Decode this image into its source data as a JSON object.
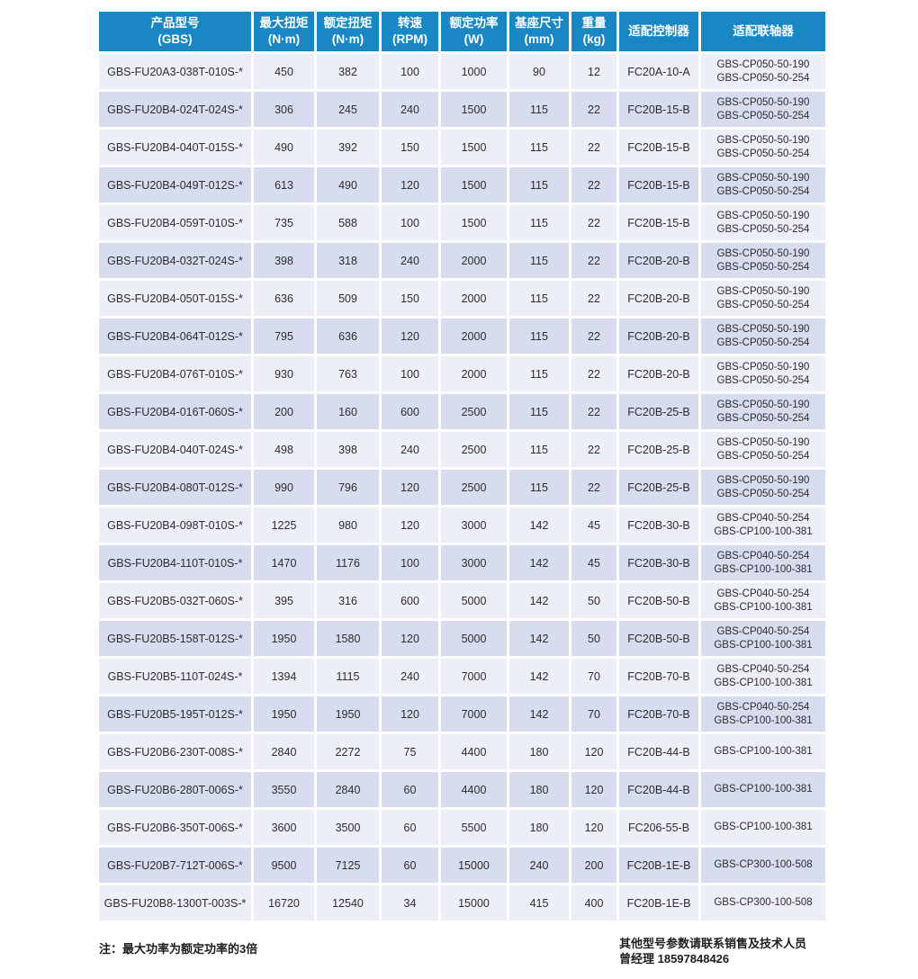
{
  "colors": {
    "header_bg": "#1A87C5",
    "row_light": "#ECEFF8",
    "row_dark": "#D7DCEF",
    "header_text": "#FFFFFF",
    "body_text": "#2D2D2D"
  },
  "table": {
    "column_keys": [
      "model",
      "max-torque",
      "rated-torque",
      "speed",
      "rated-power",
      "base-size",
      "weight",
      "controller",
      "coupling"
    ],
    "headers": [
      {
        "line1": "产品型号",
        "line2": "(GBS)"
      },
      {
        "line1": "最大扭矩",
        "line2": "(N·m)"
      },
      {
        "line1": "额定扭矩",
        "line2": "(N·m)"
      },
      {
        "line1": "转速",
        "line2": "(RPM)"
      },
      {
        "line1": "额定功率",
        "line2": "(W)"
      },
      {
        "line1": "基座尺寸",
        "line2": "(mm)"
      },
      {
        "line1": "重量",
        "line2": "(kg)"
      },
      {
        "line1": "适配控制器",
        "line2": ""
      },
      {
        "line1": "适配联轴器",
        "line2": ""
      }
    ],
    "rows": [
      [
        "GBS-FU20A3-038T-010S-*",
        "450",
        "382",
        "100",
        "1000",
        "90",
        "12",
        "FC20A-10-A",
        [
          "GBS-CP050-50-190",
          "GBS-CP050-50-254"
        ]
      ],
      [
        "GBS-FU20B4-024T-024S-*",
        "306",
        "245",
        "240",
        "1500",
        "115",
        "22",
        "FC20B-15-B",
        [
          "GBS-CP050-50-190",
          "GBS-CP050-50-254"
        ]
      ],
      [
        "GBS-FU20B4-040T-015S-*",
        "490",
        "392",
        "150",
        "1500",
        "115",
        "22",
        "FC20B-15-B",
        [
          "GBS-CP050-50-190",
          "GBS-CP050-50-254"
        ]
      ],
      [
        "GBS-FU20B4-049T-012S-*",
        "613",
        "490",
        "120",
        "1500",
        "115",
        "22",
        "FC20B-15-B",
        [
          "GBS-CP050-50-190",
          "GBS-CP050-50-254"
        ]
      ],
      [
        "GBS-FU20B4-059T-010S-*",
        "735",
        "588",
        "100",
        "1500",
        "115",
        "22",
        "FC20B-15-B",
        [
          "GBS-CP050-50-190",
          "GBS-CP050-50-254"
        ]
      ],
      [
        "GBS-FU20B4-032T-024S-*",
        "398",
        "318",
        "240",
        "2000",
        "115",
        "22",
        "FC20B-20-B",
        [
          "GBS-CP050-50-190",
          "GBS-CP050-50-254"
        ]
      ],
      [
        "GBS-FU20B4-050T-015S-*",
        "636",
        "509",
        "150",
        "2000",
        "115",
        "22",
        "FC20B-20-B",
        [
          "GBS-CP050-50-190",
          "GBS-CP050-50-254"
        ]
      ],
      [
        "GBS-FU20B4-064T-012S-*",
        "795",
        "636",
        "120",
        "2000",
        "115",
        "22",
        "FC20B-20-B",
        [
          "GBS-CP050-50-190",
          "GBS-CP050-50-254"
        ]
      ],
      [
        "GBS-FU20B4-076T-010S-*",
        "930",
        "763",
        "100",
        "2000",
        "115",
        "22",
        "FC20B-20-B",
        [
          "GBS-CP050-50-190",
          "GBS-CP050-50-254"
        ]
      ],
      [
        "GBS-FU20B4-016T-060S-*",
        "200",
        "160",
        "600",
        "2500",
        "115",
        "22",
        "FC20B-25-B",
        [
          "GBS-CP050-50-190",
          "GBS-CP050-50-254"
        ]
      ],
      [
        "GBS-FU20B4-040T-024S-*",
        "498",
        "398",
        "240",
        "2500",
        "115",
        "22",
        "FC20B-25-B",
        [
          "GBS-CP050-50-190",
          "GBS-CP050-50-254"
        ]
      ],
      [
        "GBS-FU20B4-080T-012S-*",
        "990",
        "796",
        "120",
        "2500",
        "115",
        "22",
        "FC20B-25-B",
        [
          "GBS-CP050-50-190",
          "GBS-CP050-50-254"
        ]
      ],
      [
        "GBS-FU20B4-098T-010S-*",
        "1225",
        "980",
        "120",
        "3000",
        "142",
        "45",
        "FC20B-30-B",
        [
          "GBS-CP040-50-254",
          "GBS-CP100-100-381"
        ]
      ],
      [
        "GBS-FU20B4-110T-010S-*",
        "1470",
        "1176",
        "100",
        "3000",
        "142",
        "45",
        "FC20B-30-B",
        [
          "GBS-CP040-50-254",
          "GBS-CP100-100-381"
        ]
      ],
      [
        "GBS-FU20B5-032T-060S-*",
        "395",
        "316",
        "600",
        "5000",
        "142",
        "50",
        "FC20B-50-B",
        [
          "GBS-CP040-50-254",
          "GBS-CP100-100-381"
        ]
      ],
      [
        "GBS-FU20B5-158T-012S-*",
        "1950",
        "1580",
        "120",
        "5000",
        "142",
        "50",
        "FC20B-50-B",
        [
          "GBS-CP040-50-254",
          "GBS-CP100-100-381"
        ]
      ],
      [
        "GBS-FU20B5-110T-024S-*",
        "1394",
        "1115",
        "240",
        "7000",
        "142",
        "70",
        "FC20B-70-B",
        [
          "GBS-CP040-50-254",
          "GBS-CP100-100-381"
        ]
      ],
      [
        "GBS-FU20B5-195T-012S-*",
        "1950",
        "1950",
        "120",
        "7000",
        "142",
        "70",
        "FC20B-70-B",
        [
          "GBS-CP040-50-254",
          "GBS-CP100-100-381"
        ]
      ],
      [
        "GBS-FU20B6-230T-008S-*",
        "2840",
        "2272",
        "75",
        "4400",
        "180",
        "120",
        "FC20B-44-B",
        [
          "GBS-CP100-100-381"
        ]
      ],
      [
        "GBS-FU20B6-280T-006S-*",
        "3550",
        "2840",
        "60",
        "4400",
        "180",
        "120",
        "FC20B-44-B",
        [
          "GBS-CP100-100-381"
        ]
      ],
      [
        "GBS-FU20B6-350T-006S-*",
        "3600",
        "3500",
        "60",
        "5500",
        "180",
        "120",
        "FC206-55-B",
        [
          "GBS-CP100-100-381"
        ]
      ],
      [
        "GBS-FU20B7-712T-006S-*",
        "9500",
        "7125",
        "60",
        "15000",
        "240",
        "200",
        "FC20B-1E-B",
        [
          "GBS-CP300-100-508"
        ]
      ],
      [
        "GBS-FU20B8-1300T-003S-*",
        "16720",
        "12540",
        "34",
        "15000",
        "415",
        "400",
        "FC20B-1E-B",
        [
          "GBS-CP300-100-508"
        ]
      ]
    ]
  },
  "footer": {
    "note": "注：最大功率为额定功率的3倍",
    "contact_line1": "其他型号参数请联系销售及技术人员",
    "contact_line2": "曾经理 18597848426"
  }
}
